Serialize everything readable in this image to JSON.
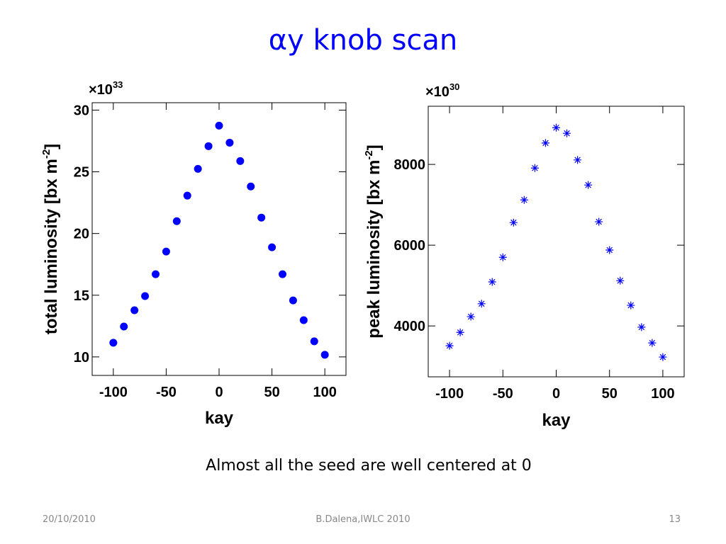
{
  "title": "αy knob scan",
  "caption": "Almost all the seed are well centered at 0",
  "footer": {
    "date": "20/10/2010",
    "author": "B.Dalena,IWLC 2010",
    "page": "13"
  },
  "chart_data": [
    {
      "type": "scatter",
      "marker": "circle",
      "color": "#0000ff",
      "xlabel": "kay",
      "ylabel": {
        "text": "total luminosity [bx m",
        "sup": "-2",
        "end": "]"
      },
      "y_multiplier": {
        "base": "×10",
        "exponent": "33"
      },
      "x": [
        -100,
        -90,
        -80,
        -70,
        -60,
        -50,
        -40,
        -30,
        -20,
        -10,
        0,
        10,
        20,
        30,
        40,
        50,
        60,
        70,
        80,
        90,
        100
      ],
      "values": [
        11.15,
        12.46,
        13.78,
        14.93,
        16.7,
        18.54,
        21.0,
        23.07,
        25.24,
        27.08,
        28.74,
        27.36,
        25.87,
        23.81,
        21.29,
        18.88,
        16.7,
        14.58,
        12.98,
        11.26,
        10.17
      ],
      "xlim": [
        -120,
        120
      ],
      "xticks": [
        -100,
        -50,
        0,
        50,
        100
      ],
      "ylim": [
        8.5,
        30.6
      ],
      "yticks": [
        10,
        15,
        20,
        25,
        30
      ]
    },
    {
      "type": "scatter",
      "marker": "star",
      "color": "#0000ff",
      "xlabel": "kay",
      "ylabel": {
        "text": "peak luminosity [bx m",
        "sup": "-2",
        "end": "]"
      },
      "y_multiplier": {
        "base": "×10",
        "exponent": "30"
      },
      "x": [
        -100,
        -90,
        -80,
        -70,
        -60,
        -50,
        -40,
        -30,
        -20,
        -10,
        0,
        10,
        20,
        30,
        40,
        50,
        60,
        70,
        80,
        90,
        100
      ],
      "values": [
        3510,
        3840,
        4230,
        4550,
        5090,
        5700,
        6560,
        7120,
        7910,
        8530,
        8910,
        8770,
        8110,
        7490,
        6580,
        5880,
        5120,
        4510,
        3970,
        3580,
        3230
      ],
      "xlim": [
        -120,
        120
      ],
      "xticks": [
        -100,
        -50,
        0,
        50,
        100
      ],
      "ylim": [
        2740,
        9440
      ],
      "yticks": [
        4000,
        6000,
        8000
      ]
    }
  ]
}
